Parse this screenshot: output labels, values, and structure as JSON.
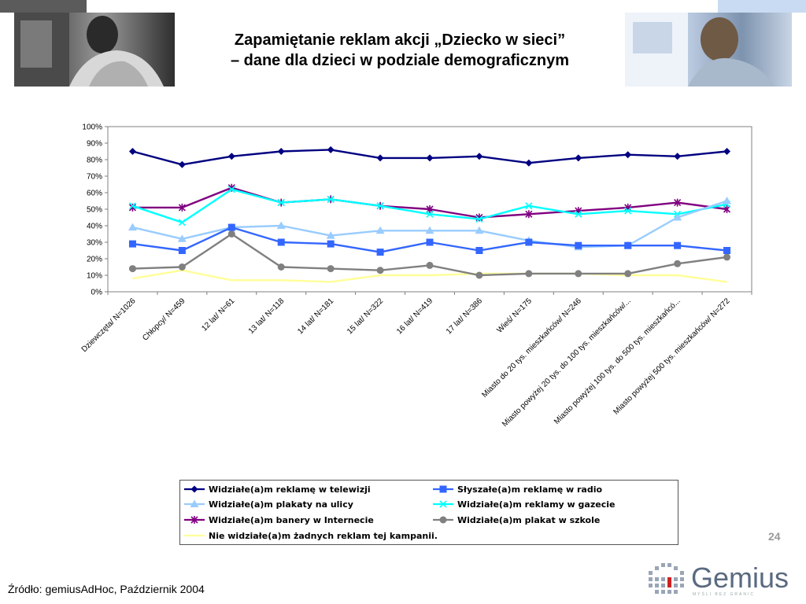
{
  "header": {
    "title_line1": "Zapamiętanie reklam akcji „Dziecko w sieci”",
    "title_line2": "– dane dla dzieci w podziale demograficznym"
  },
  "page_number": "24",
  "source": "Źródło: gemiusAdHoc, Październik 2004",
  "logo": {
    "text": "Gemius",
    "tagline": "MYŚLI BEZ GRANIC"
  },
  "chart_data": {
    "type": "line",
    "title": "",
    "xlabel": "",
    "ylabel": "",
    "ylim": [
      0,
      100
    ],
    "yticks": [
      "0%",
      "10%",
      "20%",
      "30%",
      "40%",
      "50%",
      "60%",
      "70%",
      "80%",
      "90%",
      "100%"
    ],
    "grid": false,
    "legend_position": "bottom",
    "categories": [
      "Dziewczęta/ N=1026",
      "Chłopcy/ N=459",
      "12 lat/ N=61",
      "13 lat/ N=118",
      "14 lat/ N=181",
      "15 lat/ N=322",
      "16 lat/ N=419",
      "17 lat/ N=386",
      "Wieś/ N=175",
      "Miasto do 20 tys. mieszkańców/ N=246",
      "Miasto powyżej 20 tys. do 100 tys. mieszkańców/...",
      "Miasto powyżej 100 tys. do 500 tys. mieszkańcó...",
      "Miasto powyżej 500 tys. mieszkańców/ N=272"
    ],
    "series": [
      {
        "name": "Widziałe(a)m reklamę w telewizji",
        "color": "#000080",
        "marker": "diamond",
        "values": [
          85,
          77,
          82,
          85,
          86,
          81,
          81,
          82,
          78,
          81,
          83,
          82,
          85
        ]
      },
      {
        "name": "Słyszałe(a)m reklamę w radio",
        "color": "#3366ff",
        "marker": "square",
        "values": [
          29,
          25,
          39,
          30,
          29,
          24,
          30,
          25,
          30,
          28,
          28,
          28,
          25
        ]
      },
      {
        "name": "Widziałe(a)m plakaty na ulicy",
        "color": "#99ccff",
        "marker": "triangle",
        "values": [
          39,
          32,
          39,
          40,
          34,
          37,
          37,
          37,
          31,
          27,
          28,
          45,
          55
        ]
      },
      {
        "name": "Widziałe(a)m reklamy w gazecie",
        "color": "#00ffff",
        "marker": "x",
        "values": [
          52,
          42,
          62,
          54,
          56,
          52,
          47,
          44,
          52,
          47,
          49,
          47,
          53
        ]
      },
      {
        "name": "Widziałe(a)m banery w Internecie",
        "color": "#800080",
        "marker": "star",
        "values": [
          51,
          51,
          63,
          54,
          56,
          52,
          50,
          45,
          47,
          49,
          51,
          54,
          50
        ]
      },
      {
        "name": "Widziałe(a)m plakat w szkole",
        "color": "#808080",
        "marker": "circle",
        "values": [
          14,
          15,
          35,
          15,
          14,
          13,
          16,
          10,
          11,
          11,
          11,
          17,
          21
        ]
      },
      {
        "name": "Nie widziałe(a)m żadnych reklam tej kampanii.",
        "color": "#ffff99",
        "marker": "none",
        "values": [
          8,
          13,
          7,
          7,
          6,
          10,
          10,
          11,
          11,
          11,
          10,
          10,
          6
        ]
      }
    ]
  }
}
